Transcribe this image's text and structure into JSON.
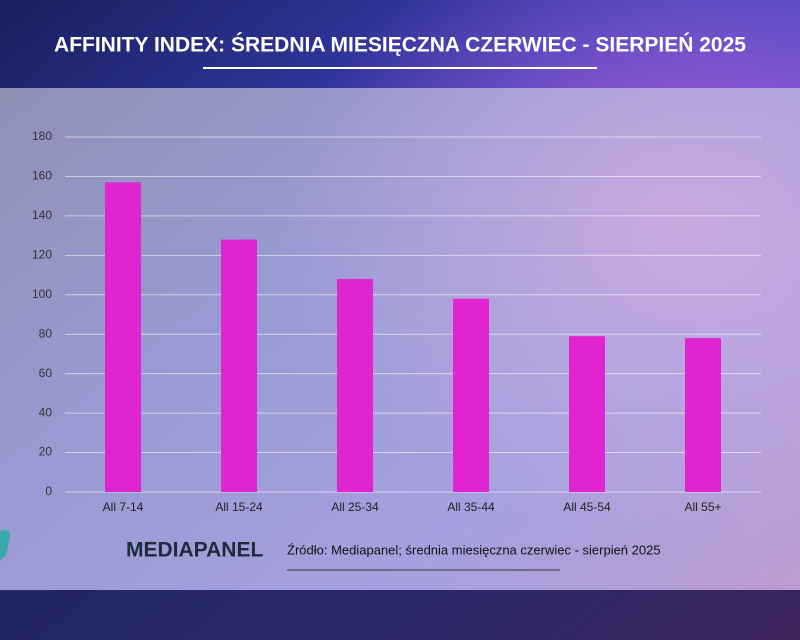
{
  "chart_data": {
    "type": "bar",
    "title": "AFFINITY INDEX: ŚREDNIA MIESIĘCZNA CZERWIEC - SIERPIEŃ 2025",
    "categories": [
      "All 7-14",
      "All 15-24",
      "All 25-34",
      "All 35-44",
      "All 45-54",
      "All 55+"
    ],
    "values": [
      157,
      128,
      108,
      98,
      79,
      78
    ],
    "color": "#e024cf",
    "ylim": [
      0,
      180
    ],
    "yticks": [
      0,
      20,
      40,
      60,
      80,
      100,
      120,
      140,
      160,
      180
    ],
    "grid": true
  },
  "footer": {
    "brand": "MEDIAPANEL",
    "source": "Źródło: Mediapanel; średnia miesięczna czerwiec - sierpień 2025"
  }
}
